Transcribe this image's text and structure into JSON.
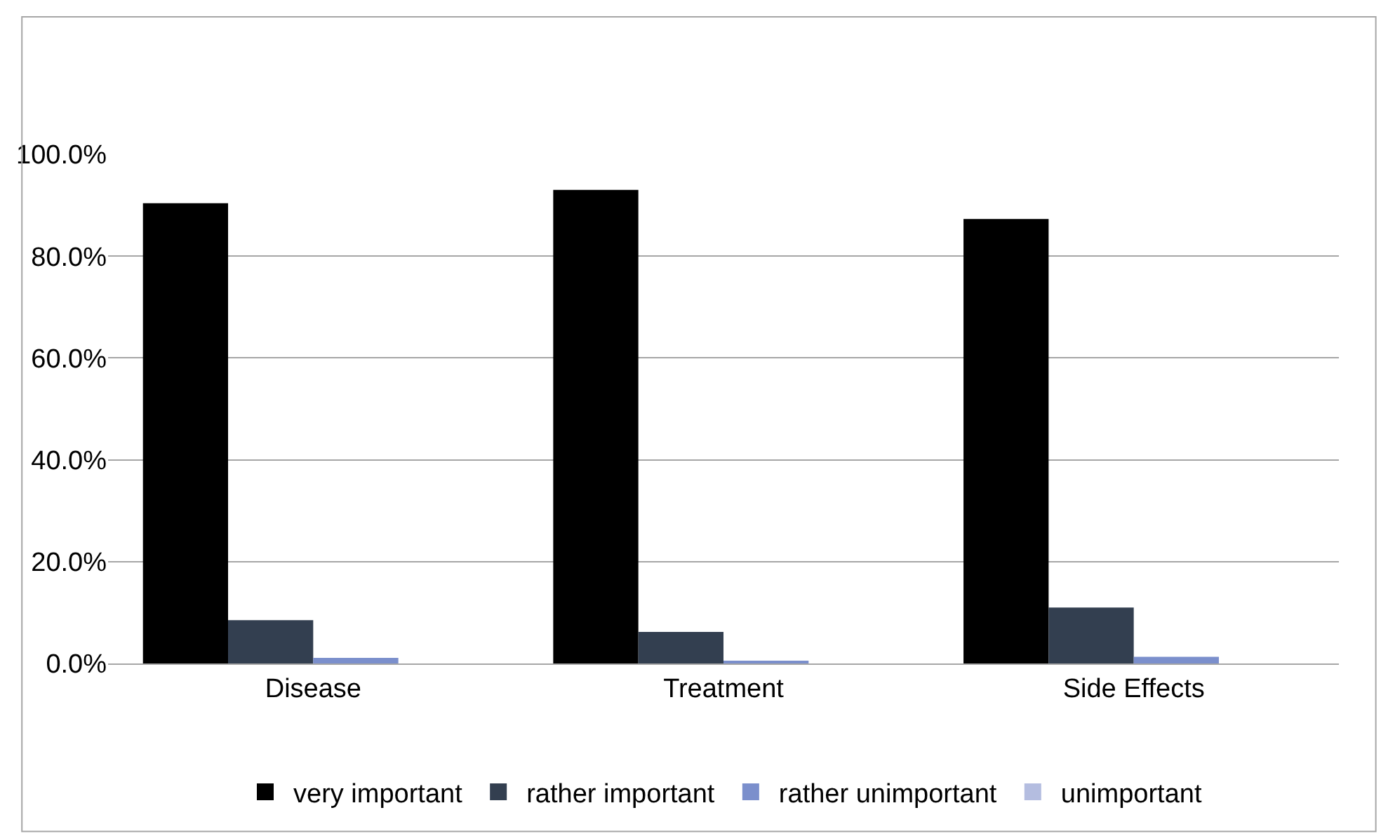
{
  "chart_data": {
    "type": "bar",
    "categories": [
      "Disease",
      "Treatment",
      "Side Effects"
    ],
    "series": [
      {
        "name": "very important",
        "color": "#000000",
        "values": [
          90.4,
          93.0,
          87.3
        ]
      },
      {
        "name": "rather important",
        "color": "#333f50",
        "values": [
          8.5,
          6.2,
          11.0
        ]
      },
      {
        "name": "rather unimportant",
        "color": "#7b8fcc",
        "values": [
          1.1,
          0.5,
          1.3
        ]
      },
      {
        "name": "unimportant",
        "color": "#b4bde0",
        "values": [
          null,
          null,
          null
        ]
      }
    ],
    "ylim": [
      0,
      100
    ],
    "yticks": [
      {
        "value": 0,
        "label": "0.0%"
      },
      {
        "value": 20,
        "label": "20.0%"
      },
      {
        "value": 40,
        "label": "40.0%"
      },
      {
        "value": 60,
        "label": "60.0%"
      },
      {
        "value": 80,
        "label": "80.0%"
      },
      {
        "value": 100,
        "label": "100.0%"
      }
    ],
    "grid": "y",
    "legend": "bottom"
  }
}
